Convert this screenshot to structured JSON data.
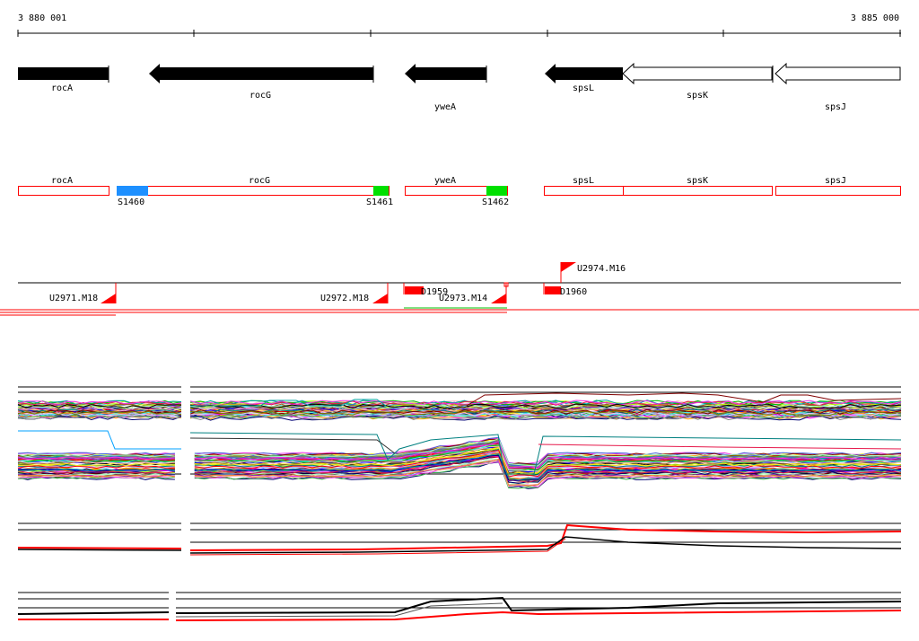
{
  "ruler": {
    "start_label": "3 880 001",
    "end_label": "3 885 000"
  },
  "genes": [
    {
      "name": "rocA",
      "strand": "+",
      "style": "filled"
    },
    {
      "name": "rocG",
      "strand": "-",
      "style": "filled"
    },
    {
      "name": "ywеA",
      "strand": "-",
      "style": "filled"
    },
    {
      "name": "spsL",
      "strand": "-",
      "style": "filled"
    },
    {
      "name": "spsK",
      "strand": "-",
      "style": "outline"
    },
    {
      "name": "spsJ",
      "strand": "-",
      "style": "outline"
    }
  ],
  "transcripts": [
    {
      "name": "rocA"
    },
    {
      "name": "rocG"
    },
    {
      "name": "ywеA"
    },
    {
      "name": "spsL"
    },
    {
      "name": "spsK"
    },
    {
      "name": "spsJ"
    }
  ],
  "segments": [
    {
      "label": "S1460",
      "color": "#1e90ff"
    },
    {
      "label": "S1461",
      "color": "#00e000"
    },
    {
      "label": "S1462",
      "color": "#00e000"
    }
  ],
  "features": [
    {
      "label": "U2971.M18"
    },
    {
      "label": "U2972.M18"
    },
    {
      "label": "D1959"
    },
    {
      "label": "U2973.M14"
    },
    {
      "label": "D1960"
    },
    {
      "label": "U2974.M16"
    }
  ],
  "colors": {
    "feature": "#ff0000",
    "transcript_outline": "#ff0000",
    "gene_fill": "#000000"
  }
}
